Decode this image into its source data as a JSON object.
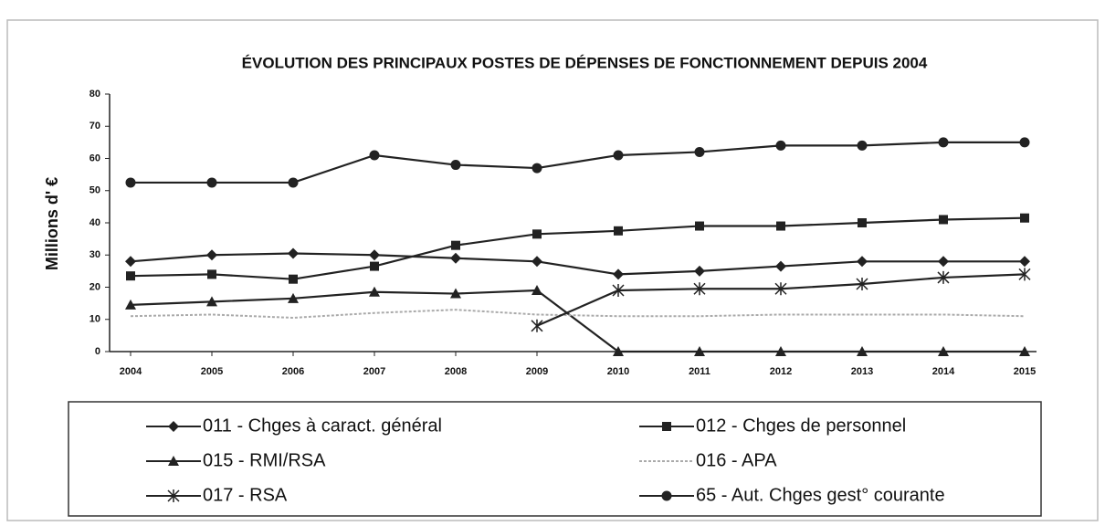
{
  "chart_data": {
    "type": "line",
    "title": "ÉVOLUTION DES PRINCIPAUX POSTES DE DÉPENSES DE FONCTIONNEMENT DEPUIS 2004",
    "y_label": "Millions d' €",
    "categories": [
      "2004",
      "2005",
      "2006",
      "2007",
      "2008",
      "2009",
      "2010",
      "2011",
      "2012",
      "2013",
      "2014",
      "2015"
    ],
    "ylim": [
      0,
      80
    ],
    "yticks": [
      0,
      10,
      20,
      30,
      40,
      50,
      60,
      70,
      80
    ],
    "grid": false,
    "series": [
      {
        "name": "011 - Chges à caract. général",
        "color": "#222222",
        "marker": "diamond",
        "values": [
          28,
          30,
          30.5,
          30,
          29,
          28,
          24,
          25,
          26.5,
          28,
          28,
          28
        ]
      },
      {
        "name": "012 - Chges de personnel",
        "color": "#222222",
        "marker": "square",
        "values": [
          23.5,
          24,
          22.5,
          26.5,
          33,
          36.5,
          37.5,
          39,
          39,
          40,
          41,
          41.5
        ]
      },
      {
        "name": "015 - RMI/RSA",
        "color": "#222222",
        "marker": "triangle",
        "values": [
          14.5,
          15.5,
          16.5,
          18.5,
          18,
          19,
          0,
          0,
          0,
          0,
          0,
          0
        ]
      },
      {
        "name": "016 - APA",
        "color": "#aaaaaa",
        "marker": "none",
        "values": [
          11,
          11.5,
          10.5,
          12,
          13,
          11.5,
          11,
          11,
          11.5,
          11.5,
          11.5,
          11
        ]
      },
      {
        "name": "017 - RSA",
        "color": "#222222",
        "marker": "star",
        "values": [
          null,
          null,
          null,
          null,
          null,
          8,
          19,
          19.5,
          19.5,
          21,
          23,
          24
        ]
      },
      {
        "name": "65 - Aut. Chges gest° courante",
        "color": "#222222",
        "marker": "circle",
        "values": [
          52.5,
          52.5,
          52.5,
          61,
          58,
          57,
          61,
          62,
          64,
          64,
          65,
          65
        ]
      }
    ]
  }
}
